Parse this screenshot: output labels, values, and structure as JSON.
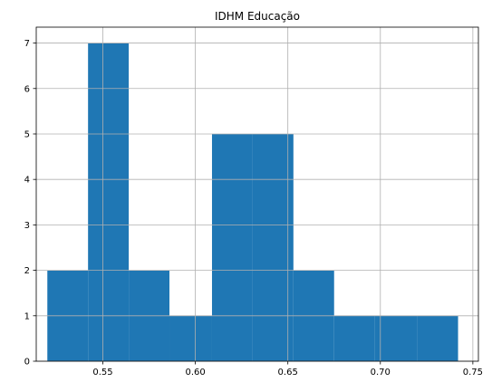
{
  "chart_data": {
    "type": "bar",
    "subtype": "histogram",
    "title": "IDHM Educação",
    "xlabel": "",
    "ylabel": "",
    "xlim": [
      0.514,
      0.753
    ],
    "ylim": [
      0,
      7.35
    ],
    "grid": true,
    "bar_color": "#1f77b4",
    "x_ticks": [
      0.55,
      0.6,
      0.65,
      0.7,
      0.75
    ],
    "x_tick_labels": [
      "0.55",
      "0.60",
      "0.65",
      "0.70",
      "0.75"
    ],
    "y_ticks": [
      0,
      1,
      2,
      3,
      4,
      5,
      6,
      7
    ],
    "y_tick_labels": [
      "0",
      "1",
      "2",
      "3",
      "4",
      "5",
      "6",
      "7"
    ],
    "bins": [
      {
        "x0": 0.52,
        "x1": 0.542,
        "count": 2
      },
      {
        "x0": 0.542,
        "x1": 0.564,
        "count": 7
      },
      {
        "x0": 0.564,
        "x1": 0.586,
        "count": 2
      },
      {
        "x0": 0.586,
        "x1": 0.609,
        "count": 1
      },
      {
        "x0": 0.609,
        "x1": 0.631,
        "count": 5
      },
      {
        "x0": 0.631,
        "x1": 0.653,
        "count": 5
      },
      {
        "x0": 0.653,
        "x1": 0.675,
        "count": 2
      },
      {
        "x0": 0.675,
        "x1": 0.697,
        "count": 1
      },
      {
        "x0": 0.697,
        "x1": 0.72,
        "count": 1
      },
      {
        "x0": 0.72,
        "x1": 0.742,
        "count": 1
      }
    ]
  }
}
